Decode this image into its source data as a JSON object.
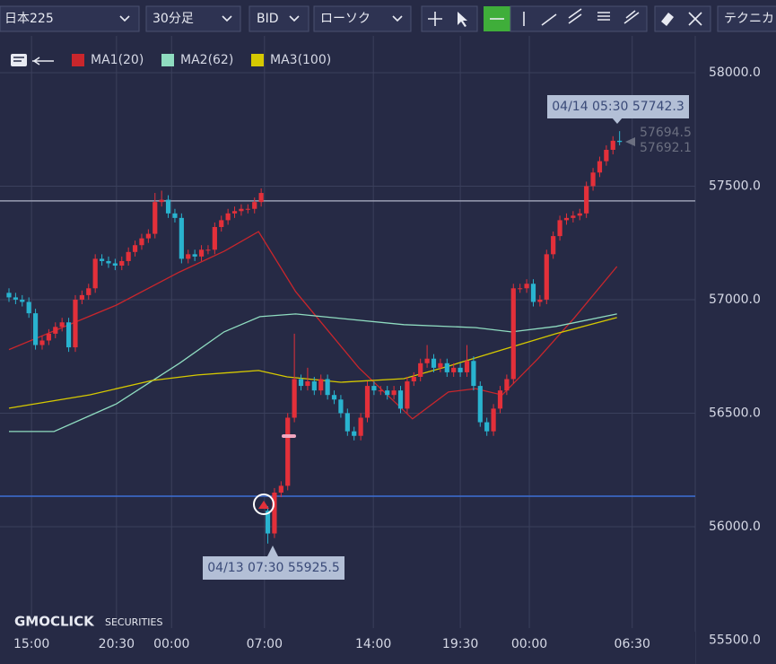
{
  "toolbar": {
    "symbol": "日本225",
    "interval": "30分足",
    "price_type": "BID",
    "chart_type": "ローソク",
    "technical": "テクニカ"
  },
  "logo": {
    "brand": "GMOCLICK",
    "suffix": "SECURITIES"
  },
  "chart_data": {
    "type": "candlestick",
    "up_color": "#e3303a",
    "down_color": "#29b3cf",
    "grid": true,
    "xlim": [
      -1.35,
      103.4
    ],
    "xticks": [
      {
        "value": 3.4,
        "label": "15:00"
      },
      {
        "value": 16.2,
        "label": "20:30"
      },
      {
        "value": 24.5,
        "label": "00:00"
      },
      {
        "value": 38.5,
        "label": "07:00"
      },
      {
        "value": 54.9,
        "label": "14:00"
      },
      {
        "value": 68,
        "label": "19:30"
      },
      {
        "value": 78.4,
        "label": "00:00"
      },
      {
        "value": 93.9,
        "label": "06:30"
      }
    ],
    "ylim": [
      55395,
      58320
    ],
    "yticks": [
      {
        "value": 55500,
        "label": "55500.0"
      },
      {
        "value": 56000,
        "label": "56000.0"
      },
      {
        "value": 56500,
        "label": "56500.0"
      },
      {
        "value": 57000,
        "label": "57000.0"
      },
      {
        "value": 57500,
        "label": "57500.0"
      },
      {
        "value": 58000,
        "label": "58000.0"
      }
    ],
    "candles": [
      [
        57030,
        57050,
        56990,
        57010
      ],
      [
        57010,
        57030,
        56980,
        57000
      ],
      [
        57000,
        57020,
        56970,
        56990
      ],
      [
        56990,
        57010,
        56920,
        56940
      ],
      [
        56940,
        56960,
        56780,
        56800
      ],
      [
        56800,
        56840,
        56780,
        56820
      ],
      [
        56820,
        56870,
        56800,
        56850
      ],
      [
        56850,
        56900,
        56830,
        56880
      ],
      [
        56880,
        56920,
        56860,
        56900
      ],
      [
        56900,
        56920,
        56770,
        56790
      ],
      [
        56790,
        57020,
        56770,
        57000
      ],
      [
        57000,
        57040,
        56980,
        57020
      ],
      [
        57020,
        57070,
        57000,
        57050
      ],
      [
        57050,
        57200,
        57030,
        57180
      ],
      [
        57180,
        57200,
        57150,
        57170
      ],
      [
        57170,
        57190,
        57140,
        57160
      ],
      [
        57160,
        57180,
        57130,
        57150
      ],
      [
        57150,
        57190,
        57130,
        57170
      ],
      [
        57170,
        57230,
        57150,
        57210
      ],
      [
        57210,
        57260,
        57190,
        57240
      ],
      [
        57240,
        57290,
        57220,
        57270
      ],
      [
        57270,
        57310,
        57250,
        57290
      ],
      [
        57290,
        57470,
        57270,
        57430
      ],
      [
        57430,
        57480,
        57410,
        57440
      ],
      [
        57440,
        57460,
        57360,
        57380
      ],
      [
        57380,
        57400,
        57340,
        57360
      ],
      [
        57360,
        57380,
        57160,
        57180
      ],
      [
        57180,
        57220,
        57160,
        57200
      ],
      [
        57200,
        57220,
        57170,
        57190
      ],
      [
        57190,
        57240,
        57170,
        57220
      ],
      [
        57220,
        57240,
        57200,
        57220
      ],
      [
        57220,
        57340,
        57200,
        57320
      ],
      [
        57320,
        57370,
        57300,
        57350
      ],
      [
        57350,
        57400,
        57330,
        57380
      ],
      [
        57380,
        57410,
        57360,
        57390
      ],
      [
        57390,
        57420,
        57370,
        57400
      ],
      [
        57400,
        57420,
        57380,
        57400
      ],
      [
        57400,
        57450,
        57380,
        57430
      ],
      [
        57430,
        57490,
        57410,
        57470
      ],
      [
        56070,
        56090,
        55925.5,
        55970
      ],
      [
        55970,
        56170,
        55950,
        56150
      ],
      [
        56150,
        56200,
        56130,
        56180
      ],
      [
        56180,
        56500,
        56160,
        56480
      ],
      [
        56480,
        56850,
        56460,
        56650
      ],
      [
        56650,
        56670,
        56600,
        56620
      ],
      [
        56620,
        56700,
        56600,
        56640
      ],
      [
        56640,
        56660,
        56580,
        56600
      ],
      [
        56600,
        56670,
        56580,
        56650
      ],
      [
        56650,
        56670,
        56560,
        56580
      ],
      [
        56580,
        56600,
        56540,
        56560
      ],
      [
        56560,
        56580,
        56480,
        56500
      ],
      [
        56500,
        56520,
        56400,
        56420
      ],
      [
        56420,
        56440,
        56380,
        56400
      ],
      [
        56400,
        56500,
        56380,
        56480
      ],
      [
        56480,
        56640,
        56460,
        56620
      ],
      [
        56620,
        56640,
        56580,
        56600
      ],
      [
        56600,
        56620,
        56580,
        56600
      ],
      [
        56600,
        56620,
        56560,
        56580
      ],
      [
        56580,
        56620,
        56560,
        56600
      ],
      [
        56600,
        56620,
        56500,
        56520
      ],
      [
        56520,
        56660,
        56500,
        56640
      ],
      [
        56640,
        56680,
        56620,
        56660
      ],
      [
        56660,
        56740,
        56640,
        56720
      ],
      [
        56720,
        56800,
        56700,
        56740
      ],
      [
        56740,
        56760,
        56680,
        56700
      ],
      [
        56700,
        56740,
        56680,
        56720
      ],
      [
        56720,
        56740,
        56660,
        56680
      ],
      [
        56680,
        56720,
        56660,
        56700
      ],
      [
        56700,
        56720,
        56660,
        56680
      ],
      [
        56680,
        56800,
        56660,
        56730
      ],
      [
        56730,
        56750,
        56600,
        56620
      ],
      [
        56620,
        56640,
        56440,
        56460
      ],
      [
        56460,
        56480,
        56400,
        56420
      ],
      [
        56420,
        56540,
        56400,
        56520
      ],
      [
        56520,
        56620,
        56500,
        56600
      ],
      [
        56600,
        56670,
        56580,
        56650
      ],
      [
        56650,
        57070,
        56630,
        57050
      ],
      [
        57050,
        57070,
        57030,
        57050
      ],
      [
        57050,
        57090,
        57030,
        57070
      ],
      [
        57070,
        57090,
        56970,
        56990
      ],
      [
        56990,
        57020,
        56970,
        57000
      ],
      [
        57000,
        57220,
        56980,
        57200
      ],
      [
        57200,
        57300,
        57180,
        57280
      ],
      [
        57280,
        57370,
        57260,
        57350
      ],
      [
        57350,
        57380,
        57330,
        57360
      ],
      [
        57360,
        57390,
        57340,
        57370
      ],
      [
        57370,
        57400,
        57350,
        57380
      ],
      [
        57380,
        57520,
        57360,
        57500
      ],
      [
        57500,
        57580,
        57480,
        57560
      ],
      [
        57560,
        57630,
        57540,
        57610
      ],
      [
        57610,
        57680,
        57590,
        57660
      ],
      [
        57660,
        57720,
        57640,
        57700
      ],
      [
        57700,
        57742.3,
        57680,
        57694.5
      ]
    ],
    "series": [
      {
        "name": "MA1(20)",
        "color": "#c9262c",
        "x": [
          0,
          16.2,
          25.7,
          32.4,
          37.6,
          43.2,
          52.7,
          60.8,
          66.2,
          70.3,
          74.3,
          79.7,
          85.1,
          91.6
        ],
        "values": [
          56780,
          56976,
          57122,
          57213,
          57300,
          57035,
          56700,
          56475,
          56593,
          56608,
          56580,
          56740,
          56917,
          57146
        ]
      },
      {
        "name": "MA2(62)",
        "color": "#8fdcc0",
        "x": [
          0,
          6.8,
          16.2,
          25.7,
          32.4,
          37.8,
          43.2,
          50,
          59.5,
          70.3,
          75.7,
          82.4,
          91.6
        ],
        "values": [
          56419,
          56419,
          56541,
          56720,
          56858,
          56925,
          56937,
          56917,
          56890,
          56877,
          56858,
          56882,
          56937
        ]
      },
      {
        "name": "MA3(100)",
        "color": "#d6c900",
        "x": [
          0,
          12.2,
          21.6,
          28.4,
          37.6,
          41.9,
          50,
          59.5,
          66.2,
          74.3,
          82.4,
          91.6
        ],
        "values": [
          56522,
          56581,
          56644,
          56668,
          56688,
          56660,
          56636,
          56652,
          56707,
          56779,
          56850,
          56921
        ]
      }
    ],
    "hlines": [
      {
        "value": 57435,
        "color": "#9a9eb3"
      },
      {
        "value": 56134,
        "color": "#3d6fd6"
      }
    ],
    "annotations": [
      {
        "text": "04/14 05:30 57742.3"
      },
      {
        "text": "04/13 07:30 55925.5"
      }
    ],
    "price_labels": [
      "57694.5",
      "57692.1"
    ]
  }
}
